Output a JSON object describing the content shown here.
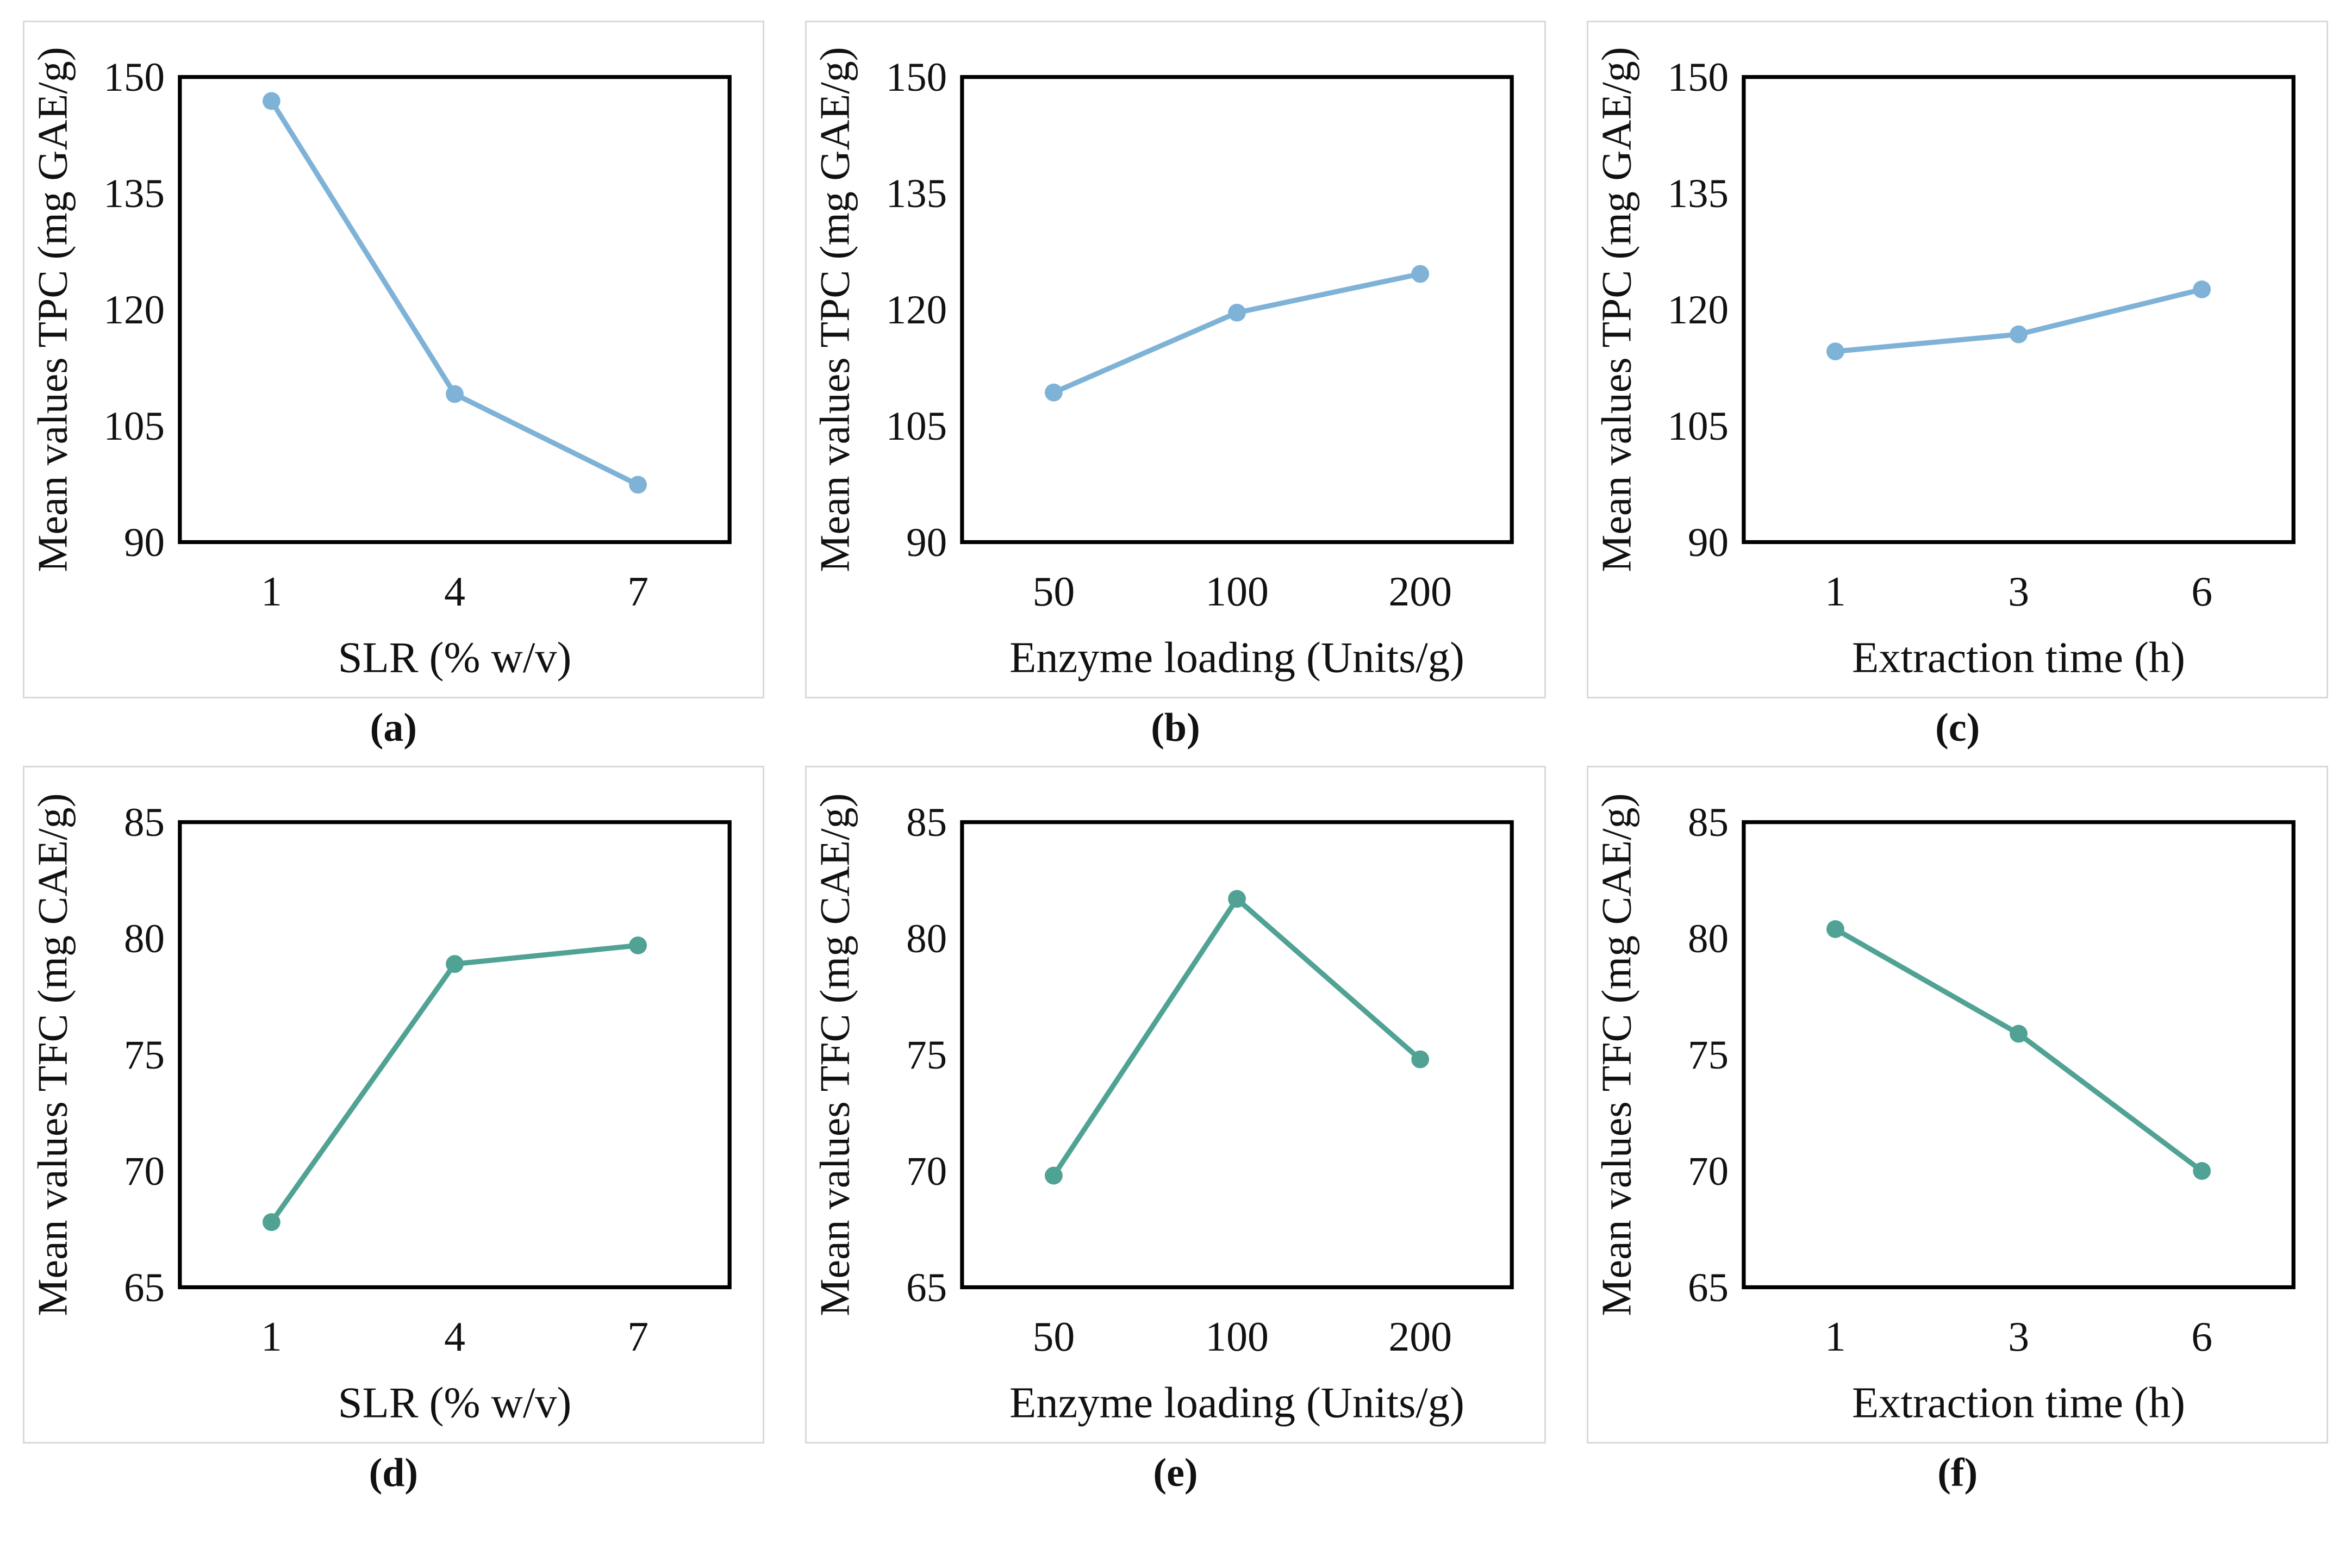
{
  "figure": {
    "background": "#ffffff",
    "panel_border_color": "#d9d9d9",
    "axis_color": "#000000",
    "text_color": "#111111",
    "tpc_series_color": "#7FB2D7",
    "tfc_series_color": "#50A294"
  },
  "chart_data": [
    {
      "id": "a",
      "caption": "(a)",
      "type": "line",
      "color": "#7FB2D7",
      "ylabel": "Mean values TPC (mg GAE/g)",
      "xlabel": "SLR (% w/v)",
      "categories": [
        "1",
        "4",
        "7"
      ],
      "values": [
        146.9,
        109.1,
        97.4
      ],
      "ylim": [
        90,
        150
      ],
      "yticks": [
        90,
        105,
        120,
        135,
        150
      ],
      "grid": false,
      "legend": "none"
    },
    {
      "id": "b",
      "caption": "(b)",
      "type": "line",
      "color": "#7FB2D7",
      "ylabel": "Mean values TPC (mg GAE/g)",
      "xlabel": "Enzyme loading (Units/g)",
      "categories": [
        "50",
        "100",
        "200"
      ],
      "values": [
        109.3,
        119.6,
        124.6
      ],
      "ylim": [
        90,
        150
      ],
      "yticks": [
        90,
        105,
        120,
        135,
        150
      ],
      "grid": false,
      "legend": "none"
    },
    {
      "id": "c",
      "caption": "(c)",
      "type": "line",
      "color": "#7FB2D7",
      "ylabel": "Mean values TPC (mg GAE/g)",
      "xlabel": "Extraction time (h)",
      "categories": [
        "1",
        "3",
        "6"
      ],
      "values": [
        114.6,
        116.8,
        122.6
      ],
      "ylim": [
        90,
        150
      ],
      "yticks": [
        90,
        105,
        120,
        135,
        150
      ],
      "grid": false,
      "legend": "none"
    },
    {
      "id": "d",
      "caption": "(d)",
      "type": "line",
      "color": "#50A294",
      "ylabel": "Mean values TFC (mg CAE/g)",
      "xlabel": "SLR (% w/v)",
      "categories": [
        "1",
        "4",
        "7"
      ],
      "values": [
        67.8,
        78.9,
        79.7
      ],
      "ylim": [
        65,
        85
      ],
      "yticks": [
        65,
        70,
        75,
        80,
        85
      ],
      "grid": false,
      "legend": "none"
    },
    {
      "id": "e",
      "caption": "(e)",
      "type": "line",
      "color": "#50A294",
      "ylabel": "Mean values TFC (mg CAE/g)",
      "xlabel": "Enzyme loading (Units/g)",
      "categories": [
        "50",
        "100",
        "200"
      ],
      "values": [
        69.8,
        81.7,
        74.8
      ],
      "ylim": [
        65,
        85
      ],
      "yticks": [
        65,
        70,
        75,
        80,
        85
      ],
      "grid": false,
      "legend": "none"
    },
    {
      "id": "f",
      "caption": "(f)",
      "type": "line",
      "color": "#50A294",
      "ylabel": "Mean values TFC (mg CAE/g)",
      "xlabel": "Extraction time (h)",
      "categories": [
        "1",
        "3",
        "6"
      ],
      "values": [
        80.4,
        75.9,
        70.0
      ],
      "ylim": [
        65,
        85
      ],
      "yticks": [
        65,
        70,
        75,
        80,
        85
      ],
      "grid": false,
      "legend": "none"
    }
  ]
}
